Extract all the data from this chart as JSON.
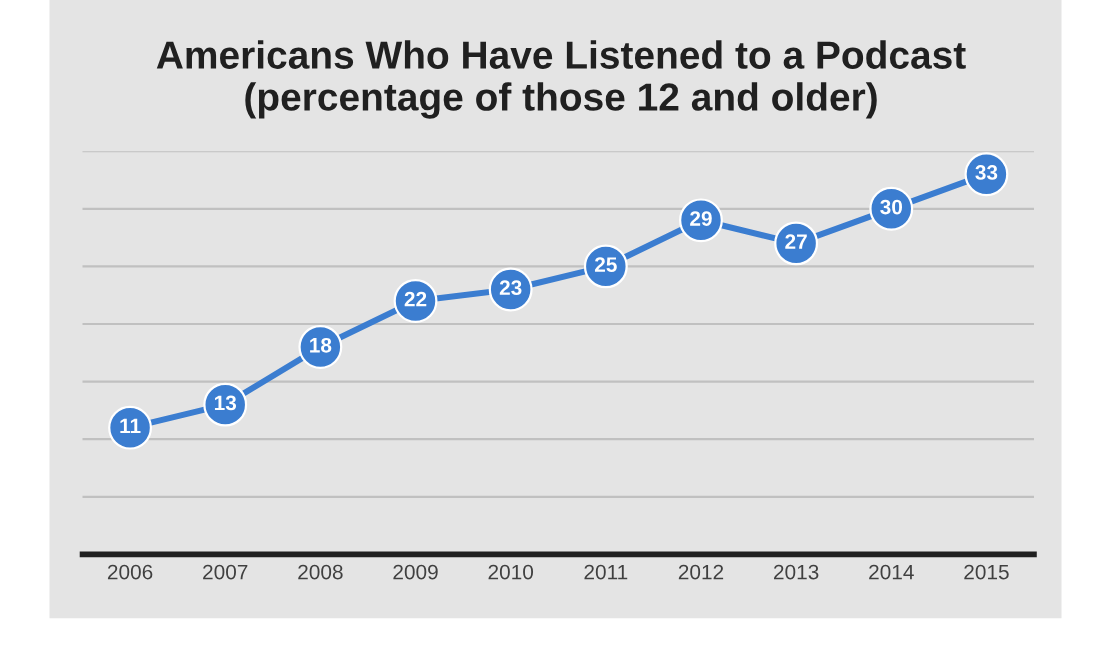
{
  "chart_data": {
    "type": "line",
    "title": "Americans Who Have Listened to a Podcast\n(percentage of those 12 and older)",
    "categories": [
      "2006",
      "2007",
      "2008",
      "2009",
      "2010",
      "2011",
      "2012",
      "2013",
      "2014",
      "2015"
    ],
    "series": [
      {
        "color": "#3b7dd0",
        "values": [
          11,
          13,
          18,
          22,
          23,
          25,
          29,
          27,
          30,
          33
        ]
      }
    ],
    "ylim": [
      0,
      35
    ],
    "yticks": [
      {
        "value": 0,
        "label": null
      },
      {
        "value": 5,
        "label": null
      },
      {
        "value": 10,
        "label": null
      },
      {
        "value": 15,
        "label": null
      },
      {
        "value": 20,
        "label": null
      },
      {
        "value": 25,
        "label": null
      },
      {
        "value": 30,
        "label": null
      },
      {
        "value": 35,
        "label": null
      }
    ],
    "tick_labels": "x",
    "grid": "y",
    "marker": "circle",
    "line_style": "solid",
    "data_labels": true
  }
}
